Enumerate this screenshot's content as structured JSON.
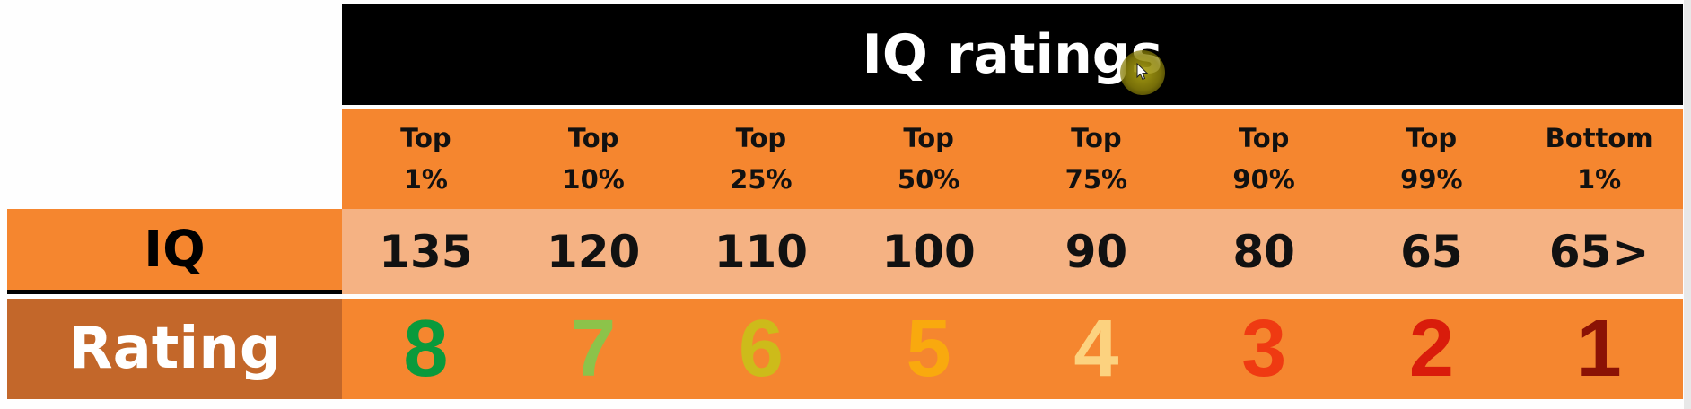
{
  "table": {
    "title": "IQ ratings",
    "headers": [
      {
        "line1": "Top",
        "line2": "1%"
      },
      {
        "line1": "Top",
        "line2": "10%"
      },
      {
        "line1": "Top",
        "line2": "25%"
      },
      {
        "line1": "Top",
        "line2": "50%"
      },
      {
        "line1": "Top",
        "line2": "75%"
      },
      {
        "line1": "Top",
        "line2": "90%"
      },
      {
        "line1": "Top",
        "line2": "99%"
      },
      {
        "line1": "Bottom",
        "line2": "1%"
      }
    ],
    "iq_label": "IQ",
    "iq_values": [
      "135",
      "120",
      "110",
      "100",
      "90",
      "80",
      "65",
      "65>"
    ],
    "rating_label": "Rating",
    "ratings": [
      "8",
      "7",
      "6",
      "5",
      "4",
      "3",
      "2",
      "1"
    ],
    "rating_colors": [
      "#0a9a3c",
      "#8cc34a",
      "#cdbb1a",
      "#f9a90e",
      "#fcd27f",
      "#ef3a12",
      "#d91c0b",
      "#8b1205"
    ]
  },
  "colors": {
    "title_bg": "#000000",
    "header_bg": "#f5862f",
    "iq_row_bg": "#f5b283",
    "rating_label_bg": "#c3672a"
  },
  "cursor": {
    "icon": "mouse-pointer-icon"
  }
}
